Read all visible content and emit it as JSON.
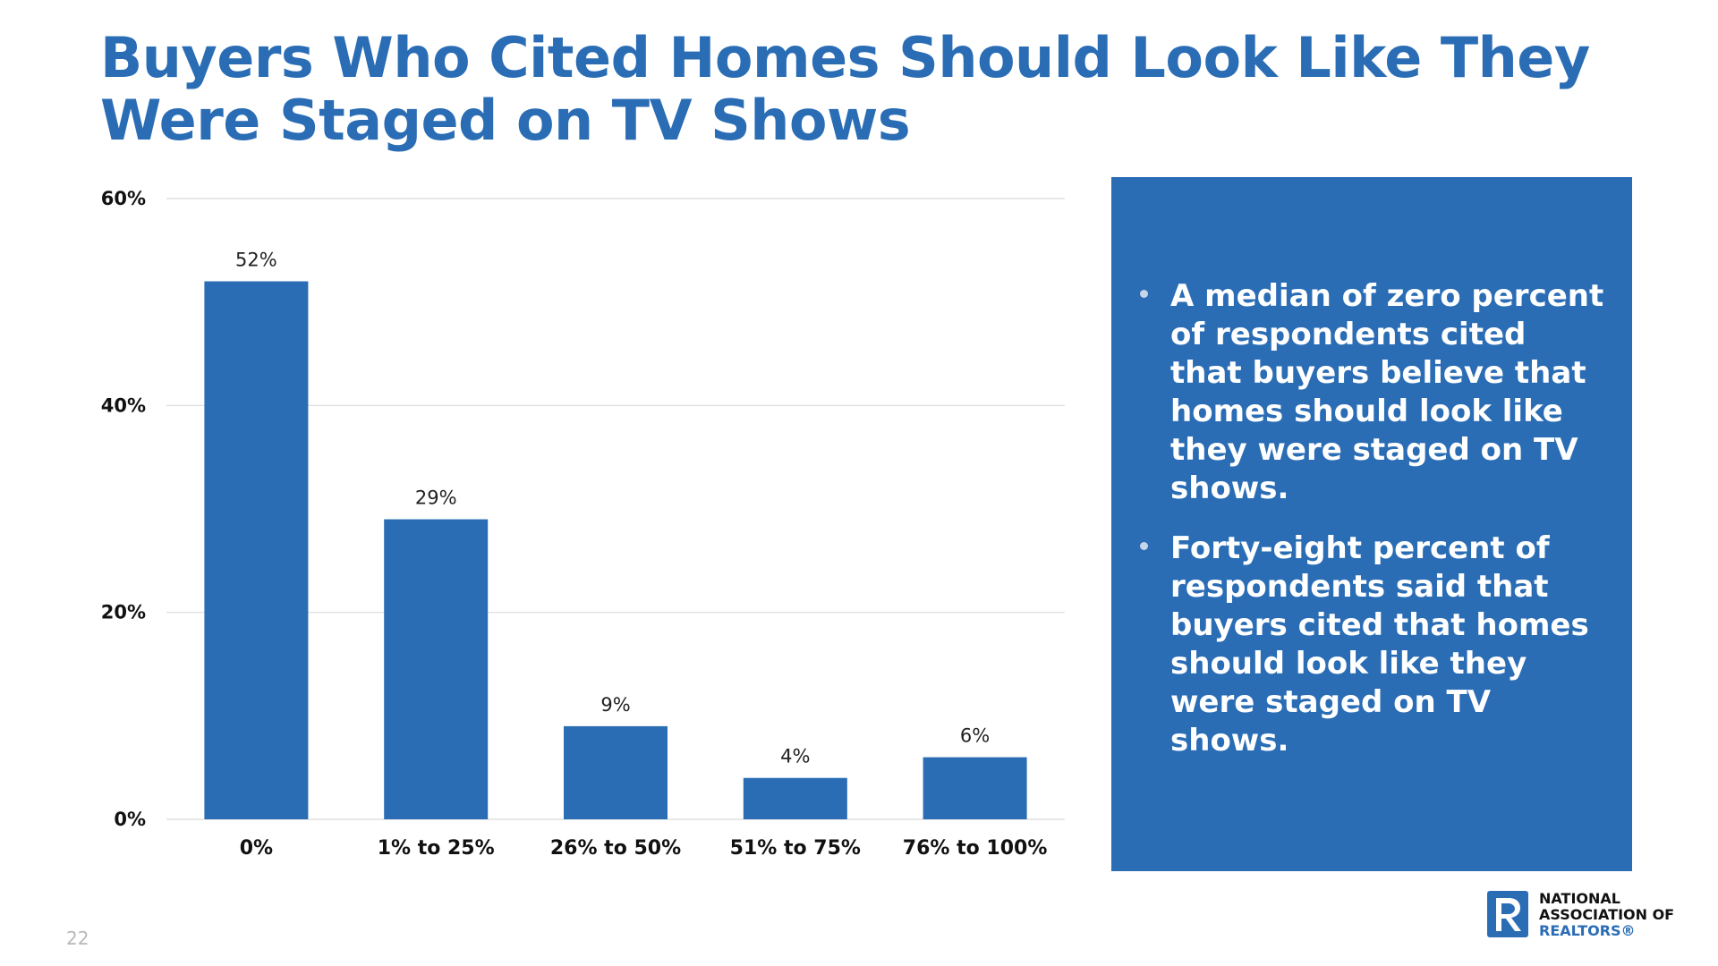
{
  "title": "Buyers Who Cited Homes Should Look Like They Were Staged on TV Shows",
  "chart_data": {
    "type": "bar",
    "categories": [
      "0%",
      "1% to 25%",
      "26% to 50%",
      "51% to 75%",
      "76% to 100%"
    ],
    "values": [
      52,
      29,
      9,
      4,
      6
    ],
    "data_labels": [
      "52%",
      "29%",
      "9%",
      "4%",
      "6%"
    ],
    "ylim": [
      0,
      60
    ],
    "yticks": [
      0,
      20,
      40,
      60
    ],
    "ytick_labels": [
      "0%",
      "20%",
      "40%",
      "60%"
    ],
    "grid": true,
    "bar_color": "#2a6db5"
  },
  "panel": {
    "bullets": [
      "A median of zero percent of respondents cited that buyers believe that homes should look like they were staged on TV shows.",
      "Forty-eight percent of respondents said that buyers cited that homes should look like they were staged on TV shows."
    ],
    "background": "#2a6db5"
  },
  "page_number": "22",
  "logo": {
    "line1": "NATIONAL",
    "line2": "ASSOCIATION OF",
    "line3": "REALTORS®"
  },
  "colors": {
    "accent": "#2a6db5",
    "text": "#111111"
  }
}
